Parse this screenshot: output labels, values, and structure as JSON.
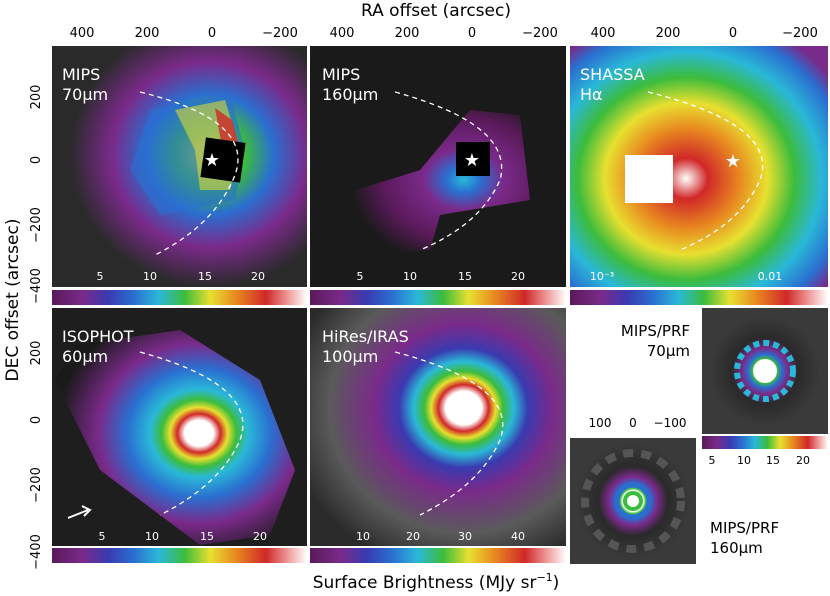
{
  "figure": {
    "x_axis_title": "RA offset (arcsec)",
    "y_axis_title": "DEC offset (arcsec)",
    "bottom_title": "Surface Brightness (MJy sr",
    "bottom_title_exp": "−1",
    "bottom_title_close": ")",
    "ra_ticks": [
      "400",
      "200",
      "0",
      "−200"
    ],
    "dec_ticks": [
      "200",
      "0",
      "−200",
      "−400"
    ],
    "dec_ticks_lower": [
      "200",
      "0",
      "−200",
      "−400"
    ]
  },
  "panels": [
    {
      "id": "mips70",
      "label_line1": "MIPS",
      "label_line2": "70μm",
      "colorbar_ticks": [
        "5",
        "10",
        "15",
        "20"
      ]
    },
    {
      "id": "mips160",
      "label_line1": "MIPS",
      "label_line2": "160μm",
      "colorbar_ticks": [
        "5",
        "10",
        "15",
        "20"
      ]
    },
    {
      "id": "shassa",
      "label_line1": "SHASSA",
      "label_line2": "Hα",
      "colorbar_ticks": [
        "10⁻³",
        "0.01"
      ]
    },
    {
      "id": "isophot",
      "label_line1": "ISOPHOT",
      "label_line2": "60μm",
      "colorbar_ticks": [
        "5",
        "10",
        "15",
        "20"
      ]
    },
    {
      "id": "hires",
      "label_line1": "HiRes/IRAS",
      "label_line2": "100μm",
      "colorbar_ticks": [
        "10",
        "20",
        "30",
        "40"
      ]
    }
  ],
  "prf": {
    "prf70_label_line1": "MIPS/PRF",
    "prf70_label_line2": "70μm",
    "prf160_label_line1": "MIPS/PRF",
    "prf160_label_line2": "160μm",
    "small_ticks": [
      "100",
      "0",
      "−100"
    ],
    "prf_colorbar_ticks": [
      "5",
      "10",
      "15",
      "20"
    ]
  },
  "colors": {
    "purple": "#7a2a8a",
    "blue": "#2a6fd0",
    "cyan": "#2ab8d8",
    "green": "#3cbc3c",
    "yellow": "#e8e030",
    "orange": "#e88a20",
    "red": "#d02828",
    "white": "#ffffff"
  }
}
